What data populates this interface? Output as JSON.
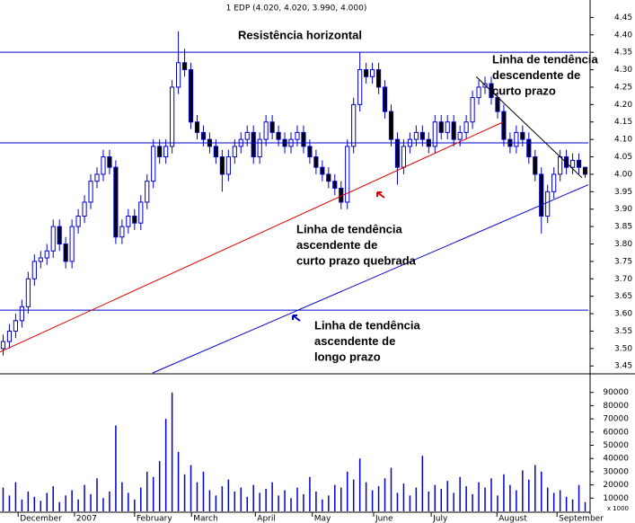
{
  "chart_data": [
    {
      "type": "candlestick",
      "title": "1 EDP (4.020, 4.020, 3.990, 4.000)",
      "xlim": [
        0,
        94
      ],
      "ylim": [
        3.43,
        4.5
      ],
      "yticks": [
        {
          "value": 3.45,
          "label": "3.45"
        },
        {
          "value": 3.5,
          "label": "3.50"
        },
        3.55,
        {
          "value": 3.6,
          "label": "3.60"
        },
        3.65,
        {
          "value": 3.7,
          "label": "3.70"
        },
        3.75,
        {
          "value": 3.8,
          "label": "3.80"
        },
        3.85,
        {
          "value": 3.9,
          "label": "3.90"
        },
        3.95,
        {
          "value": 4,
          "label": "4.00"
        },
        4.05,
        {
          "value": 4.1,
          "label": "4.10"
        },
        4.15,
        {
          "value": 4.2,
          "label": "4.20"
        },
        4.25,
        {
          "value": 4.3,
          "label": "4.30"
        },
        4.35,
        {
          "value": 4.4,
          "label": "4.40"
        },
        4.45
      ],
      "up_color": "#ffffff",
      "down_color": "#000000",
      "line_color": "#0000cc",
      "open": [
        3.5,
        3.52,
        3.55,
        3.58,
        3.62,
        3.7,
        3.75,
        3.76,
        3.78,
        3.85,
        3.8,
        3.75,
        3.85,
        3.88,
        3.92,
        3.98,
        4.0,
        4.05,
        4.02,
        3.82,
        3.85,
        3.88,
        3.86,
        3.92,
        3.98,
        4.08,
        4.05,
        4.08,
        4.25,
        4.32,
        4.3,
        4.15,
        4.12,
        4.1,
        4.08,
        4.05,
        4.0,
        4.05,
        4.08,
        4.1,
        4.12,
        4.05,
        4.1,
        4.15,
        4.12,
        4.1,
        4.08,
        4.1,
        4.12,
        4.08,
        4.05,
        4.02,
        4.0,
        3.98,
        3.96,
        3.92,
        4.08,
        4.2,
        4.3,
        4.28,
        4.3,
        4.25,
        4.18,
        4.1,
        4.02,
        4.08,
        4.1,
        4.12,
        4.1,
        4.08,
        4.15,
        4.12,
        4.15,
        4.1,
        4.12,
        4.15,
        4.22,
        4.25,
        4.26,
        4.22,
        4.18,
        4.1,
        4.08,
        4.12,
        4.1,
        4.05,
        4.0,
        3.88,
        3.95,
        4.0,
        4.05,
        4.02,
        4.04,
        4.02
      ],
      "high": [
        3.54,
        3.57,
        3.6,
        3.64,
        3.72,
        3.77,
        3.78,
        3.8,
        3.87,
        3.87,
        3.82,
        3.87,
        3.9,
        3.94,
        4.0,
        4.02,
        4.07,
        4.07,
        4.04,
        3.87,
        3.9,
        3.9,
        3.94,
        4.0,
        4.1,
        4.1,
        4.1,
        4.27,
        4.41,
        4.36,
        4.32,
        4.17,
        4.14,
        4.12,
        4.1,
        4.07,
        4.07,
        4.1,
        4.12,
        4.14,
        4.14,
        4.12,
        4.17,
        4.17,
        4.14,
        4.12,
        4.12,
        4.14,
        4.14,
        4.1,
        4.07,
        4.04,
        4.02,
        4.0,
        3.98,
        4.1,
        4.22,
        4.35,
        4.32,
        4.32,
        4.32,
        4.27,
        4.2,
        4.12,
        4.1,
        4.12,
        4.14,
        4.14,
        4.12,
        4.17,
        4.17,
        4.17,
        4.17,
        4.14,
        4.17,
        4.24,
        4.27,
        4.28,
        4.28,
        4.24,
        4.2,
        4.12,
        4.14,
        4.14,
        4.12,
        4.07,
        4.02,
        3.97,
        4.02,
        4.07,
        4.07,
        4.06,
        4.06,
        4.02
      ],
      "low": [
        3.48,
        3.5,
        3.53,
        3.56,
        3.6,
        3.68,
        3.73,
        3.74,
        3.76,
        3.78,
        3.73,
        3.73,
        3.83,
        3.86,
        3.9,
        3.96,
        3.98,
        4.0,
        3.8,
        3.8,
        3.83,
        3.84,
        3.84,
        3.9,
        3.96,
        4.03,
        4.03,
        4.06,
        4.23,
        4.28,
        4.13,
        4.1,
        4.08,
        4.06,
        4.03,
        3.95,
        3.98,
        4.03,
        4.06,
        4.08,
        4.03,
        4.03,
        4.08,
        4.1,
        4.08,
        4.06,
        4.06,
        4.08,
        4.06,
        4.03,
        4.0,
        3.98,
        3.96,
        3.94,
        3.9,
        3.9,
        4.06,
        4.18,
        4.26,
        4.26,
        4.23,
        4.16,
        4.08,
        3.97,
        4.0,
        4.06,
        4.08,
        4.08,
        4.06,
        4.06,
        4.1,
        4.1,
        4.08,
        4.08,
        4.1,
        4.13,
        4.2,
        4.23,
        4.2,
        4.16,
        4.08,
        4.06,
        4.06,
        4.08,
        4.03,
        3.98,
        3.83,
        3.86,
        3.93,
        3.98,
        4.0,
        4.0,
        4.0,
        3.99
      ],
      "close": [
        3.52,
        3.55,
        3.58,
        3.62,
        3.7,
        3.75,
        3.76,
        3.78,
        3.85,
        3.8,
        3.75,
        3.85,
        3.88,
        3.92,
        3.98,
        4.0,
        4.05,
        4.02,
        3.82,
        3.85,
        3.88,
        3.86,
        3.92,
        3.98,
        4.08,
        4.05,
        4.08,
        4.25,
        4.32,
        4.3,
        4.15,
        4.12,
        4.1,
        4.08,
        4.05,
        4.0,
        4.05,
        4.08,
        4.1,
        4.12,
        4.05,
        4.1,
        4.15,
        4.12,
        4.1,
        4.08,
        4.1,
        4.12,
        4.08,
        4.05,
        4.02,
        4.0,
        3.98,
        3.96,
        3.92,
        4.08,
        4.2,
        4.3,
        4.28,
        4.3,
        4.25,
        4.18,
        4.1,
        4.02,
        4.08,
        4.1,
        4.12,
        4.1,
        4.08,
        4.15,
        4.12,
        4.15,
        4.1,
        4.12,
        4.15,
        4.22,
        4.25,
        4.26,
        4.22,
        4.18,
        4.1,
        4.08,
        4.12,
        4.1,
        4.05,
        4.0,
        3.88,
        3.95,
        4.0,
        4.05,
        4.02,
        4.04,
        4.02,
        4.0
      ],
      "trend_lines": [
        {
          "x": [
            0,
            94
          ],
          "y": [
            4.35,
            4.35
          ],
          "color": "#0000cc"
        },
        {
          "x": [
            0,
            94
          ],
          "y": [
            4.09,
            4.09
          ],
          "color": "#0000cc"
        },
        {
          "x": [
            0,
            94
          ],
          "y": [
            3.61,
            3.61
          ],
          "color": "#0000cc"
        },
        {
          "x": [
            0,
            80.4
          ],
          "y": [
            3.49,
            4.15
          ],
          "color": "#e00000"
        },
        {
          "x": [
            24.4,
            94
          ],
          "y": [
            3.43,
            3.97
          ],
          "color": "#0000cc"
        },
        {
          "x": [
            76.1,
            93
          ],
          "y": [
            4.28,
            3.99
          ],
          "color": "#000000"
        }
      ],
      "annotations": [
        {
          "lines": [
            "Resistência horizontal"
          ],
          "color": "#0000cc"
        },
        {
          "lines": [
            "Linha de tendência",
            "descendente de",
            "curto prazo"
          ],
          "color": "#000000"
        },
        {
          "lines": [
            "Linha de tendência",
            "ascendente de",
            "curto prazo quebrada"
          ],
          "color": "#e00000"
        },
        {
          "lines": [
            "Linha de tendência",
            "ascendente de",
            "longo prazo"
          ],
          "color": "#0000cc"
        }
      ]
    },
    {
      "type": "bar",
      "xlim": [
        0,
        94
      ],
      "ylim": [
        0,
        100000
      ],
      "color": "#0000cc",
      "unit_label": "x 1000",
      "yticks": [
        10000,
        20000,
        30000,
        40000,
        50000,
        60000,
        70000,
        80000,
        90000
      ],
      "xticks": [
        {
          "value": 2.9,
          "label": "December"
        },
        {
          "value": 11.9,
          "label": "2007"
        },
        {
          "value": 21.5,
          "label": "February"
        },
        {
          "value": 30.6,
          "label": "March"
        },
        {
          "value": 40.8,
          "label": "April"
        },
        {
          "value": 49.9,
          "label": "May"
        },
        {
          "value": 59.7,
          "label": "June"
        },
        {
          "value": 68.9,
          "label": "July"
        },
        {
          "value": 79.4,
          "label": "August"
        },
        {
          "value": 89,
          "label": "September"
        }
      ],
      "values": [
        18000,
        12000,
        22000,
        9000,
        15000,
        11000,
        8000,
        14000,
        19000,
        7000,
        12000,
        16000,
        9000,
        20000,
        13000,
        25000,
        10000,
        15000,
        65000,
        22000,
        14000,
        9000,
        18000,
        30000,
        26000,
        38000,
        70000,
        90000,
        45000,
        28000,
        35000,
        22000,
        30000,
        16000,
        12000,
        19000,
        24000,
        15000,
        18000,
        11000,
        20000,
        14000,
        17000,
        22000,
        12000,
        16000,
        10000,
        18000,
        13000,
        26000,
        15000,
        9000,
        12000,
        20000,
        18000,
        30000,
        24000,
        40000,
        22000,
        16000,
        19000,
        25000,
        33000,
        14000,
        21000,
        12000,
        18000,
        42000,
        15000,
        20000,
        17000,
        23000,
        14000,
        26000,
        19000,
        13000,
        22000,
        18000,
        25000,
        12000,
        28000,
        20000,
        16000,
        31000,
        24000,
        35000,
        30000,
        18000,
        14000,
        16000,
        11000,
        9000,
        20000,
        7000
      ]
    }
  ]
}
